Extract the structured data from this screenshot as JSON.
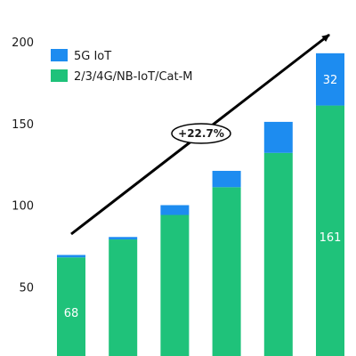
{
  "chart_data": {
    "type": "bar",
    "stacked": true,
    "title": "",
    "xlabel": "",
    "ylabel": "",
    "ylim": [
      0,
      200
    ],
    "yticks": [
      50,
      100,
      150,
      200
    ],
    "grid": false,
    "legend_position": "top-left",
    "categories": [
      "",
      "",
      "",
      "",
      "",
      ""
    ],
    "series": [
      {
        "name": "2/3/4G/NB-IoT/Cat-M",
        "color": "#1fc27a",
        "values": [
          68,
          79,
          94,
          111,
          132,
          161
        ],
        "data_labels": [
          "68",
          "",
          "",
          "",
          "",
          "161"
        ]
      },
      {
        "name": "5G IoT",
        "color": "#1d8cf0",
        "values": [
          1.5,
          1.5,
          6,
          10,
          19,
          32
        ],
        "data_labels": [
          "",
          "",
          "",
          "",
          "",
          "32"
        ]
      }
    ],
    "annotation": {
      "type": "trend-arrow",
      "text": "+22.7%"
    }
  },
  "legend": {
    "items": [
      {
        "label": "5G IoT",
        "color": "#1d8cf0"
      },
      {
        "label": "2/3/4G/NB-IoT/Cat-M",
        "color": "#1fc27a"
      }
    ]
  }
}
